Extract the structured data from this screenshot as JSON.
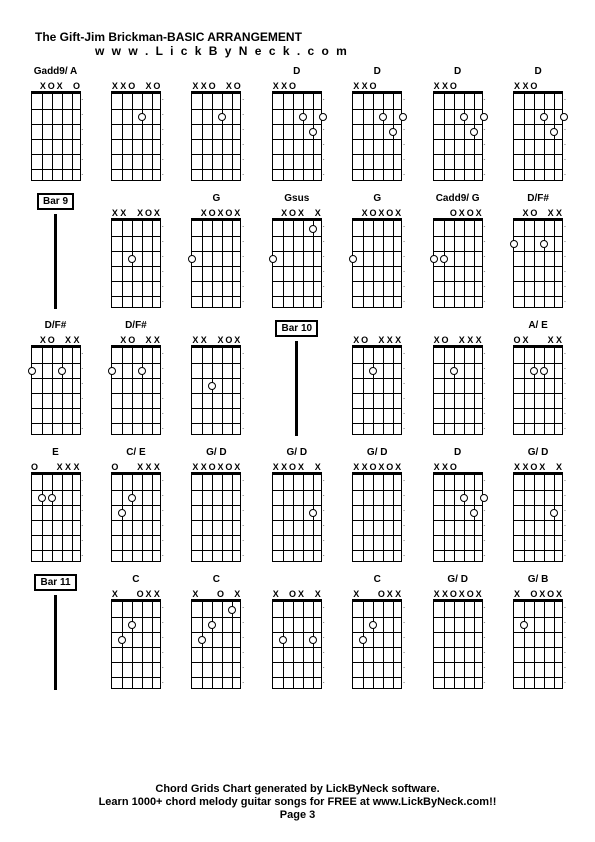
{
  "title": "The Gift-Jim Brickman-BASIC ARRANGEMENT",
  "subtitle": "w w w . L i c k B y N e c k . c o m",
  "footer_line1": "Chord Grids Chart generated by LickByNeck software.",
  "footer_line2": "Learn 1000+ chord melody guitar songs for FREE at www.LickByNeck.com!!",
  "footer_line3": "Page 3",
  "strings": 6,
  "frets": 6,
  "chords": [
    {
      "label": "Gadd9/ A",
      "markers": [
        "",
        "X",
        "O",
        "X",
        "",
        "O"
      ],
      "dots": [],
      "open": true
    },
    {
      "label": "",
      "markers": [
        "X",
        "X",
        "O",
        "",
        "X",
        "O"
      ],
      "dots": [
        {
          "s": 3,
          "f": 2
        }
      ],
      "open": true
    },
    {
      "label": "",
      "markers": [
        "X",
        "X",
        "O",
        "",
        "X",
        "O"
      ],
      "dots": [
        {
          "s": 3,
          "f": 2
        }
      ],
      "open": true
    },
    {
      "label": "D",
      "markers": [
        "X",
        "X",
        "O",
        "",
        "",
        ""
      ],
      "dots": [
        {
          "s": 3,
          "f": 2
        },
        {
          "s": 4,
          "f": 3
        },
        {
          "s": 5,
          "f": 2
        }
      ],
      "open": true
    },
    {
      "label": "D",
      "markers": [
        "X",
        "X",
        "O",
        "",
        "",
        ""
      ],
      "dots": [
        {
          "s": 3,
          "f": 2
        },
        {
          "s": 4,
          "f": 3
        },
        {
          "s": 5,
          "f": 2
        }
      ],
      "open": true
    },
    {
      "label": "D",
      "markers": [
        "X",
        "X",
        "O",
        "",
        "",
        ""
      ],
      "dots": [
        {
          "s": 3,
          "f": 2
        },
        {
          "s": 4,
          "f": 3
        },
        {
          "s": 5,
          "f": 2
        }
      ],
      "open": true
    },
    {
      "label": "D",
      "markers": [
        "X",
        "X",
        "O",
        "",
        "",
        ""
      ],
      "dots": [
        {
          "s": 3,
          "f": 2
        },
        {
          "s": 4,
          "f": 3
        },
        {
          "s": 5,
          "f": 2
        }
      ],
      "open": true
    },
    {
      "type": "bar",
      "barLabel": "Bar 9"
    },
    {
      "label": "",
      "markers": [
        "X",
        "X",
        "",
        "X",
        "O",
        "X"
      ],
      "dots": [
        {
          "s": 2,
          "f": 3
        }
      ],
      "open": true
    },
    {
      "label": "G",
      "markers": [
        "",
        "X",
        "O",
        "X",
        "O",
        "X"
      ],
      "dots": [
        {
          "s": 0,
          "f": 3
        }
      ],
      "open": true
    },
    {
      "label": "Gsus",
      "markers": [
        "",
        "X",
        "O",
        "X",
        "",
        "X"
      ],
      "dots": [
        {
          "s": 0,
          "f": 3
        },
        {
          "s": 4,
          "f": 1
        }
      ],
      "open": true
    },
    {
      "label": "G",
      "markers": [
        "",
        "X",
        "O",
        "X",
        "O",
        "X"
      ],
      "dots": [
        {
          "s": 0,
          "f": 3
        }
      ],
      "open": true
    },
    {
      "label": "Cadd9/ G",
      "markers": [
        "",
        "",
        "O",
        "X",
        "O",
        "X"
      ],
      "dots": [
        {
          "s": 0,
          "f": 3
        },
        {
          "s": 1,
          "f": 3
        }
      ],
      "open": true
    },
    {
      "label": "D/F#",
      "markers": [
        "",
        "X",
        "O",
        "",
        "X",
        "X"
      ],
      "dots": [
        {
          "s": 0,
          "f": 2
        },
        {
          "s": 3,
          "f": 2
        }
      ],
      "open": true
    },
    {
      "label": "D/F#",
      "markers": [
        "",
        "X",
        "O",
        "",
        "X",
        "X"
      ],
      "dots": [
        {
          "s": 0,
          "f": 2
        },
        {
          "s": 3,
          "f": 2
        }
      ],
      "open": true
    },
    {
      "label": "D/F#",
      "markers": [
        "",
        "X",
        "O",
        "",
        "X",
        "X"
      ],
      "dots": [
        {
          "s": 0,
          "f": 2
        },
        {
          "s": 3,
          "f": 2
        }
      ],
      "open": true
    },
    {
      "label": "",
      "markers": [
        "X",
        "X",
        "",
        "X",
        "O",
        "X"
      ],
      "dots": [
        {
          "s": 2,
          "f": 3
        }
      ],
      "open": true
    },
    {
      "type": "bar",
      "barLabel": "Bar 10"
    },
    {
      "label": "",
      "markers": [
        "X",
        "O",
        "",
        "X",
        "X",
        "X"
      ],
      "dots": [
        {
          "s": 2,
          "f": 2
        }
      ],
      "open": true
    },
    {
      "label": "",
      "markers": [
        "X",
        "O",
        "",
        "X",
        "X",
        "X"
      ],
      "dots": [
        {
          "s": 2,
          "f": 2
        }
      ],
      "open": true
    },
    {
      "label": "A/ E",
      "markers": [
        "O",
        "X",
        "",
        "",
        "X",
        "X"
      ],
      "dots": [
        {
          "s": 2,
          "f": 2
        },
        {
          "s": 3,
          "f": 2
        }
      ],
      "open": true
    },
    {
      "label": "E",
      "markers": [
        "O",
        "",
        "",
        "X",
        "X",
        "X"
      ],
      "dots": [
        {
          "s": 1,
          "f": 2
        },
        {
          "s": 2,
          "f": 2
        }
      ],
      "open": true
    },
    {
      "label": "C/ E",
      "markers": [
        "O",
        "",
        "",
        "X",
        "X",
        "X"
      ],
      "dots": [
        {
          "s": 1,
          "f": 3
        },
        {
          "s": 2,
          "f": 2
        }
      ],
      "open": true
    },
    {
      "label": "G/ D",
      "markers": [
        "X",
        "X",
        "O",
        "X",
        "O",
        "X"
      ],
      "dots": [],
      "open": true
    },
    {
      "label": "G/ D",
      "markers": [
        "X",
        "X",
        "O",
        "X",
        "",
        "X"
      ],
      "dots": [
        {
          "s": 4,
          "f": 3
        }
      ],
      "open": true
    },
    {
      "label": "G/ D",
      "markers": [
        "X",
        "X",
        "O",
        "X",
        "O",
        "X"
      ],
      "dots": [],
      "open": true
    },
    {
      "label": "D",
      "markers": [
        "X",
        "X",
        "O",
        "",
        "",
        ""
      ],
      "dots": [
        {
          "s": 3,
          "f": 2
        },
        {
          "s": 4,
          "f": 3
        },
        {
          "s": 5,
          "f": 2
        }
      ],
      "open": true
    },
    {
      "label": "G/ D",
      "markers": [
        "X",
        "X",
        "O",
        "X",
        "",
        "X"
      ],
      "dots": [
        {
          "s": 4,
          "f": 3
        }
      ],
      "open": true
    },
    {
      "type": "bar",
      "barLabel": "Bar 11"
    },
    {
      "label": "C",
      "markers": [
        "X",
        "",
        "",
        "O",
        "X",
        "X"
      ],
      "dots": [
        {
          "s": 1,
          "f": 3
        },
        {
          "s": 2,
          "f": 2
        }
      ],
      "open": true
    },
    {
      "label": "C",
      "markers": [
        "X",
        "",
        "",
        "O",
        "",
        "X"
      ],
      "dots": [
        {
          "s": 1,
          "f": 3
        },
        {
          "s": 2,
          "f": 2
        },
        {
          "s": 4,
          "f": 1
        }
      ],
      "open": true
    },
    {
      "label": "",
      "markers": [
        "X",
        "",
        "O",
        "X",
        "",
        "X"
      ],
      "dots": [
        {
          "s": 1,
          "f": 3
        },
        {
          "s": 4,
          "f": 3
        }
      ],
      "open": true
    },
    {
      "label": "C",
      "markers": [
        "X",
        "",
        "",
        "O",
        "X",
        "X"
      ],
      "dots": [
        {
          "s": 1,
          "f": 3
        },
        {
          "s": 2,
          "f": 2
        }
      ],
      "open": true
    },
    {
      "label": "G/ D",
      "markers": [
        "X",
        "X",
        "O",
        "X",
        "O",
        "X"
      ],
      "dots": [],
      "open": true
    },
    {
      "label": "G/ B",
      "markers": [
        "X",
        "",
        "O",
        "X",
        "O",
        "X"
      ],
      "dots": [
        {
          "s": 1,
          "f": 2
        }
      ],
      "open": true
    }
  ]
}
